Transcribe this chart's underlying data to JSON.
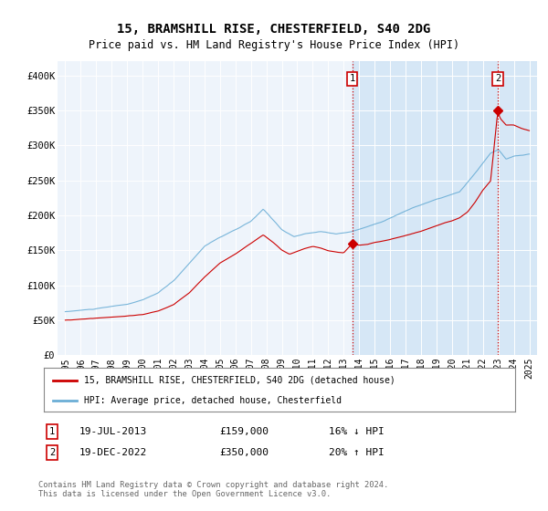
{
  "title": "15, BRAMSHILL RISE, CHESTERFIELD, S40 2DG",
  "subtitle": "Price paid vs. HM Land Registry's House Price Index (HPI)",
  "hpi_color": "#6baed6",
  "property_color": "#cc0000",
  "plot_bg": "#eef4fb",
  "shade_color": "#d0e4f5",
  "transaction1": {
    "date_num": 2013.55,
    "price": 159000,
    "label": "1",
    "note": "19-JUL-2013",
    "pct": "16% ↓ HPI"
  },
  "transaction2": {
    "date_num": 2022.97,
    "price": 350000,
    "label": "2",
    "note": "19-DEC-2022",
    "pct": "20% ↑ HPI"
  },
  "ylim": [
    0,
    420000
  ],
  "xlim_start": 1994.5,
  "xlim_end": 2025.5,
  "legend1": "15, BRAMSHILL RISE, CHESTERFIELD, S40 2DG (detached house)",
  "legend2": "HPI: Average price, detached house, Chesterfield",
  "footer": "Contains HM Land Registry data © Crown copyright and database right 2024.\nThis data is licensed under the Open Government Licence v3.0.",
  "yticks": [
    0,
    50000,
    100000,
    150000,
    200000,
    250000,
    300000,
    350000,
    400000
  ],
  "ytick_labels": [
    "£0",
    "£50K",
    "£100K",
    "£150K",
    "£200K",
    "£250K",
    "£300K",
    "£350K",
    "£400K"
  ],
  "xticks": [
    1995,
    1996,
    1997,
    1998,
    1999,
    2000,
    2001,
    2002,
    2003,
    2004,
    2005,
    2006,
    2007,
    2008,
    2009,
    2010,
    2011,
    2012,
    2013,
    2014,
    2015,
    2016,
    2017,
    2018,
    2019,
    2020,
    2021,
    2022,
    2023,
    2024,
    2025
  ]
}
